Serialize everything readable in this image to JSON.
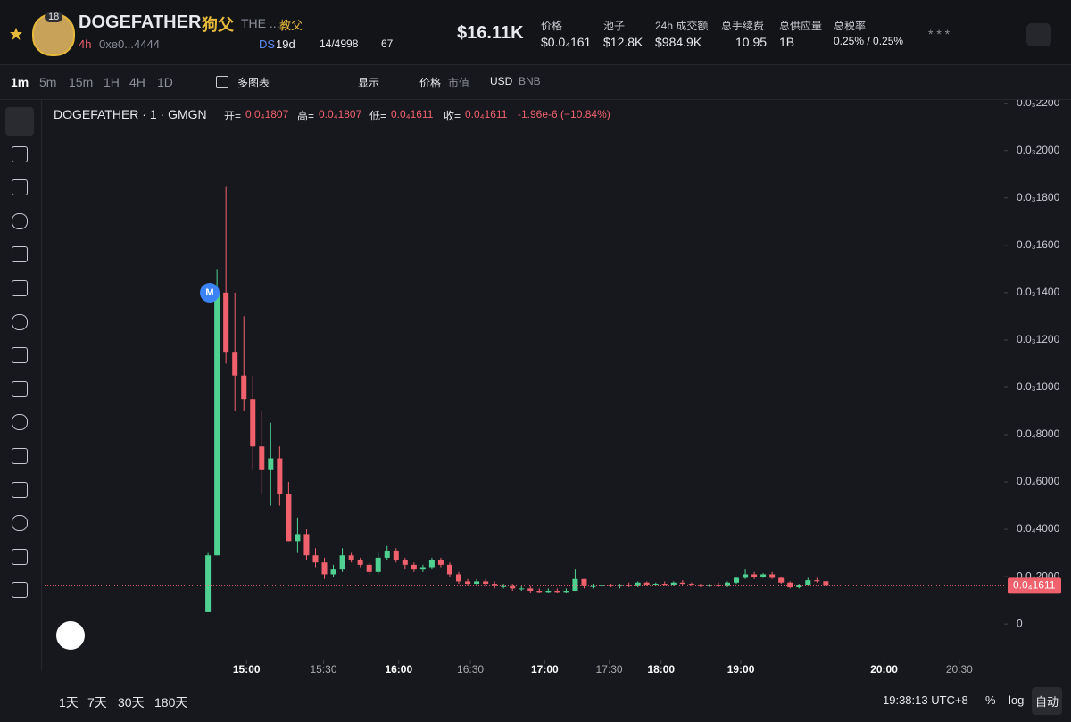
{
  "header": {
    "badge": "18",
    "name": "DOGEFATHER",
    "cn_name": "狗父",
    "desc": "THE ...",
    "desc2": "教父",
    "age": "4h",
    "address": "0xe0...4444",
    "ds": "DS",
    "ds_age": "19d",
    "holders": "14/4998",
    "views": "67",
    "market_cap": "$16.11K",
    "stats": [
      {
        "label": "价格",
        "value": "$0.0₄161"
      },
      {
        "label": "池子",
        "value": "$12.8K"
      },
      {
        "label": "24h 成交额",
        "value": "$984.9K"
      },
      {
        "label": "总手续费",
        "value": "10.95"
      },
      {
        "label": "总供应量",
        "value": "1B"
      },
      {
        "label": "总税率",
        "value": "0.25% / 0.25%"
      }
    ],
    "stars": "* * *"
  },
  "toolbar": {
    "intervals": [
      "1m",
      "5m",
      "15m",
      "1H",
      "4H",
      "1D"
    ],
    "multi": "多图表",
    "display": "显示",
    "price": "价格",
    "mcap": "市值",
    "usd": "USD",
    "bnb": "BNB"
  },
  "legend": {
    "symbol": "DOGEFATHER · 1 · GMGN",
    "items": [
      {
        "label": "开=",
        "value": "0.0₄1807"
      },
      {
        "label": "高=",
        "value": "0.0₄1807"
      },
      {
        "label": "低=",
        "value": "0.0₄1611"
      },
      {
        "label": "收=",
        "value": "0.0₄1611"
      }
    ],
    "change": "-1.96e-6 (−10.84%)",
    "marker": "M"
  },
  "chart_data": {
    "type": "candlestick",
    "up_color": "#4fd191",
    "down_color": "#f0616d",
    "ylim": [
      -1.54e-05,
      0.0002214
    ],
    "yticks": [
      0,
      {
        "value": 2e-05,
        "label": "0.0₄2000"
      },
      {
        "value": 4e-05,
        "label": "0.0₄4000"
      },
      {
        "value": 6e-05,
        "label": "0.0₄6000"
      },
      {
        "value": 8e-05,
        "label": "0.0₄8000"
      },
      {
        "value": 0.0001,
        "label": "0.0₃1000"
      },
      {
        "value": 0.00012,
        "label": "0.0₃1200"
      },
      {
        "value": 0.00014,
        "label": "0.0₃1400"
      },
      {
        "value": 0.00016,
        "label": "0.0₃1600"
      },
      {
        "value": 0.00018,
        "label": "0.0₃1800"
      },
      {
        "value": 0.0002,
        "label": "0.0₃2000"
      },
      {
        "value": 0.00022,
        "label": "0.0₃2200"
      }
    ],
    "xlim": [
      -18.25,
      88.9
    ],
    "xticks": [
      {
        "value": 4.3,
        "label": "15:00"
      },
      {
        "value": 12.9,
        "label": "15:30"
      },
      {
        "value": 21.3,
        "label": "16:00"
      },
      {
        "value": 29.3,
        "label": "16:30"
      },
      {
        "value": 37.6,
        "label": "17:00"
      },
      {
        "value": 44.8,
        "label": "17:30"
      },
      {
        "value": 50.6,
        "label": "18:00"
      },
      {
        "value": 59.5,
        "label": "19:00"
      },
      {
        "value": 75.5,
        "label": "20:00"
      },
      {
        "value": 83.9,
        "label": "20:30"
      }
    ],
    "last_price": {
      "value": 1.611e-05,
      "label": "0.0₄1611"
    },
    "candles": [
      [
        5e-06,
        3e-05,
        5e-06,
        2.9e-05
      ],
      [
        2.9e-05,
        0.00015,
        2.9e-05,
        0.00014
      ],
      [
        0.00014,
        0.000185,
        0.00011,
        0.000115
      ],
      [
        0.000115,
        0.00014,
        9e-05,
        0.000105
      ],
      [
        0.000105,
        0.00013,
        9e-05,
        9.5e-05
      ],
      [
        9.5e-05,
        0.000105,
        6.5e-05,
        7.5e-05
      ],
      [
        7.5e-05,
        9e-05,
        5.5e-05,
        6.5e-05
      ],
      [
        6.5e-05,
        8.5e-05,
        5e-05,
        7e-05
      ],
      [
        7e-05,
        7.5e-05,
        5e-05,
        5.5e-05
      ],
      [
        5.5e-05,
        6e-05,
        3.5e-05,
        3.5e-05
      ],
      [
        3.5e-05,
        4.5e-05,
        3e-05,
        3.8e-05
      ],
      [
        3.8e-05,
        4e-05,
        2.7e-05,
        2.9e-05
      ],
      [
        2.9e-05,
        3.2e-05,
        2.4e-05,
        2.6e-05
      ],
      [
        2.6e-05,
        2.8e-05,
        1.9e-05,
        2.1e-05
      ],
      [
        2.1e-05,
        2.5e-05,
        2e-05,
        2.3e-05
      ],
      [
        2.3e-05,
        3.2e-05,
        2.2e-05,
        2.9e-05
      ],
      [
        2.9e-05,
        3e-05,
        2.6e-05,
        2.7e-05
      ],
      [
        2.7e-05,
        2.8e-05,
        2.4e-05,
        2.5e-05
      ],
      [
        2.5e-05,
        2.6e-05,
        2.1e-05,
        2.2e-05
      ],
      [
        2.2e-05,
        3e-05,
        2.1e-05,
        2.8e-05
      ],
      [
        2.8e-05,
        3.3e-05,
        2.7e-05,
        3.1e-05
      ],
      [
        3.1e-05,
        3.2e-05,
        2.6e-05,
        2.7e-05
      ],
      [
        2.7e-05,
        2.8e-05,
        2.3e-05,
        2.5e-05
      ],
      [
        2.5e-05,
        2.6e-05,
        2.2e-05,
        2.3e-05
      ],
      [
        2.3e-05,
        2.5e-05,
        2.2e-05,
        2.4e-05
      ],
      [
        2.4e-05,
        2.8e-05,
        2.3e-05,
        2.7e-05
      ],
      [
        2.7e-05,
        2.8e-05,
        2.4e-05,
        2.5e-05
      ],
      [
        2.5e-05,
        2.6e-05,
        2e-05,
        2.1e-05
      ],
      [
        2.1e-05,
        2.2e-05,
        1.7e-05,
        1.8e-05
      ],
      [
        1.8e-05,
        1.9e-05,
        1.6e-05,
        1.7e-05
      ],
      [
        1.7e-05,
        1.9e-05,
        1.6e-05,
        1.8e-05
      ],
      [
        1.8e-05,
        1.9e-05,
        1.6e-05,
        1.7e-05
      ],
      [
        1.7e-05,
        1.8e-05,
        1.5e-05,
        1.6e-05
      ],
      [
        1.6e-05,
        1.7e-05,
        1.5e-05,
        1.6e-05
      ],
      [
        1.6e-05,
        1.7e-05,
        1.4e-05,
        1.5e-05
      ],
      [
        1.5e-05,
        1.6e-05,
        1.4e-05,
        1.5e-05
      ],
      [
        1.5e-05,
        1.6e-05,
        1.3e-05,
        1.4e-05
      ],
      [
        1.4e-05,
        1.5e-05,
        1.3e-05,
        1.35e-05
      ],
      [
        1.35e-05,
        1.5e-05,
        1.3e-05,
        1.4e-05
      ],
      [
        1.4e-05,
        1.5e-05,
        1.3e-05,
        1.35e-05
      ],
      [
        1.35e-05,
        1.5e-05,
        1.3e-05,
        1.4e-05
      ],
      [
        1.4e-05,
        2.3e-05,
        1.4e-05,
        1.9e-05
      ],
      [
        1.9e-05,
        1.9e-05,
        1.5e-05,
        1.6e-05
      ],
      [
        1.6e-05,
        1.7e-05,
        1.5e-05,
        1.6e-05
      ],
      [
        1.6e-05,
        1.7e-05,
        1.5e-05,
        1.65e-05
      ],
      [
        1.65e-05,
        1.7e-05,
        1.55e-05,
        1.6e-05
      ],
      [
        1.6e-05,
        1.7e-05,
        1.5e-05,
        1.65e-05
      ],
      [
        1.65e-05,
        1.75e-05,
        1.55e-05,
        1.6e-05
      ],
      [
        1.6e-05,
        1.8e-05,
        1.55e-05,
        1.75e-05
      ],
      [
        1.75e-05,
        1.8e-05,
        1.6e-05,
        1.65e-05
      ],
      [
        1.65e-05,
        1.75e-05,
        1.6e-05,
        1.7e-05
      ],
      [
        1.7e-05,
        1.8e-05,
        1.6e-05,
        1.65e-05
      ],
      [
        1.65e-05,
        1.8e-05,
        1.6e-05,
        1.75e-05
      ],
      [
        1.75e-05,
        1.85e-05,
        1.65e-05,
        1.7e-05
      ],
      [
        1.7e-05,
        1.75e-05,
        1.6e-05,
        1.65e-05
      ],
      [
        1.65e-05,
        1.7e-05,
        1.55e-05,
        1.6e-05
      ],
      [
        1.6e-05,
        1.7e-05,
        1.55e-05,
        1.65e-05
      ],
      [
        1.65e-05,
        1.75e-05,
        1.55e-05,
        1.6e-05
      ],
      [
        1.6e-05,
        1.8e-05,
        1.55e-05,
        1.75e-05
      ],
      [
        1.75e-05,
        2e-05,
        1.7e-05,
        1.95e-05
      ],
      [
        1.95e-05,
        2.3e-05,
        1.9e-05,
        2.1e-05
      ],
      [
        2.1e-05,
        2.2e-05,
        1.9e-05,
        2e-05
      ],
      [
        2e-05,
        2.15e-05,
        1.95e-05,
        2.1e-05
      ],
      [
        2.1e-05,
        2.2e-05,
        1.9e-05,
        1.95e-05
      ],
      [
        1.95e-05,
        2e-05,
        1.7e-05,
        1.75e-05
      ],
      [
        1.75e-05,
        1.8e-05,
        1.5e-05,
        1.55e-05
      ],
      [
        1.55e-05,
        1.7e-05,
        1.5e-05,
        1.65e-05
      ],
      [
        1.65e-05,
        1.95e-05,
        1.6e-05,
        1.85e-05
      ],
      [
        1.85e-05,
        1.95e-05,
        1.75e-05,
        1.807e-05
      ],
      [
        1.807e-05,
        1.807e-05,
        1.611e-05,
        1.611e-05
      ]
    ]
  },
  "footer": {
    "ranges": [
      "1天",
      "7天",
      "30天",
      "180天"
    ],
    "time": "19:38:13 UTC+8",
    "pct": "%",
    "log": "log",
    "auto": "自动"
  }
}
